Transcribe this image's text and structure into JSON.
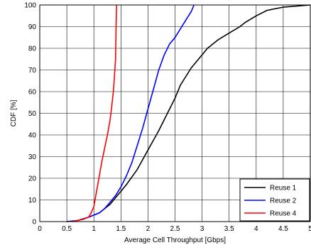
{
  "chart_data": {
    "type": "line",
    "xlabel": "Average Cell Throughput [Gbps]",
    "ylabel": "CDF [%]",
    "xlim": [
      0,
      5
    ],
    "ylim": [
      0,
      100
    ],
    "xticks": [
      "0",
      "0.5",
      "1",
      "1.5",
      "2",
      "2.5",
      "3",
      "3.5",
      "4",
      "4.5",
      "5"
    ],
    "yticks": [
      "0",
      "10",
      "20",
      "30",
      "40",
      "50",
      "60",
      "70",
      "80",
      "90",
      "100"
    ],
    "grid": true,
    "legend_position": "bottom-right",
    "series": [
      {
        "name": "Reuse 1",
        "color": "#000000",
        "x": [
          0.5,
          0.7,
          0.9,
          1.1,
          1.2,
          1.3,
          1.4,
          1.5,
          1.6,
          1.8,
          2.0,
          2.2,
          2.4,
          2.5,
          2.6,
          2.8,
          3.0,
          3.1,
          3.3,
          3.5,
          3.7,
          3.8,
          4.0,
          4.2,
          4.5,
          5.0
        ],
        "y": [
          0,
          0.5,
          2,
          4,
          6,
          8,
          11,
          14,
          17,
          24,
          33,
          42,
          52,
          57,
          63,
          71,
          77,
          80,
          84,
          87,
          90,
          92,
          95,
          97.5,
          99,
          100
        ]
      },
      {
        "name": "Reuse 2",
        "color": "#0000ff",
        "x": [
          0.5,
          0.7,
          0.9,
          1.1,
          1.2,
          1.3,
          1.4,
          1.5,
          1.6,
          1.7,
          1.8,
          1.9,
          2.0,
          2.1,
          2.2,
          2.3,
          2.4,
          2.5,
          2.6,
          2.7,
          2.8,
          2.85
        ],
        "y": [
          0,
          0.5,
          2,
          4,
          6,
          9,
          12,
          16,
          21,
          27,
          35,
          43,
          52,
          61,
          70,
          77,
          82,
          85,
          89,
          93,
          97,
          100
        ]
      },
      {
        "name": "Reuse 4",
        "color": "#ff0000",
        "x": [
          0.6,
          0.8,
          0.9,
          0.95,
          1.0,
          1.05,
          1.1,
          1.15,
          1.2,
          1.25,
          1.3,
          1.33,
          1.36,
          1.38,
          1.4,
          1.41,
          1.42
        ],
        "y": [
          0,
          1,
          2,
          4,
          7,
          14,
          21,
          28,
          34,
          40,
          47,
          53,
          60,
          67,
          75,
          88,
          100
        ]
      }
    ]
  }
}
